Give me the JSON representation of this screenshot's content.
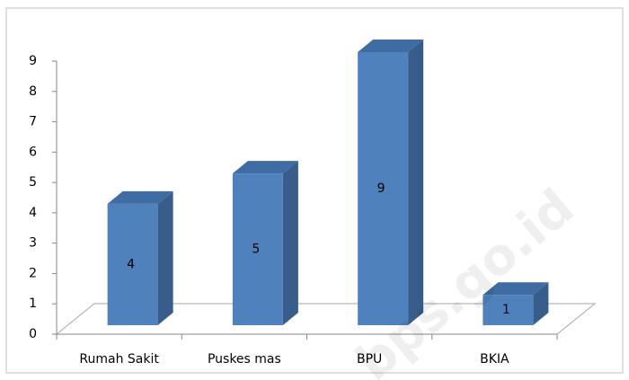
{
  "chart_data": {
    "type": "bar3d",
    "categories": [
      "Rumah Sakit",
      "Puskes mas",
      "BPU",
      "BKIA"
    ],
    "values": [
      4,
      5,
      9,
      1
    ],
    "color": "#4f81bd",
    "ylim": [
      0,
      9
    ],
    "yticks": [
      0,
      1,
      2,
      3,
      4,
      5,
      6,
      7,
      8,
      9
    ],
    "watermark": "bps.go.id"
  }
}
